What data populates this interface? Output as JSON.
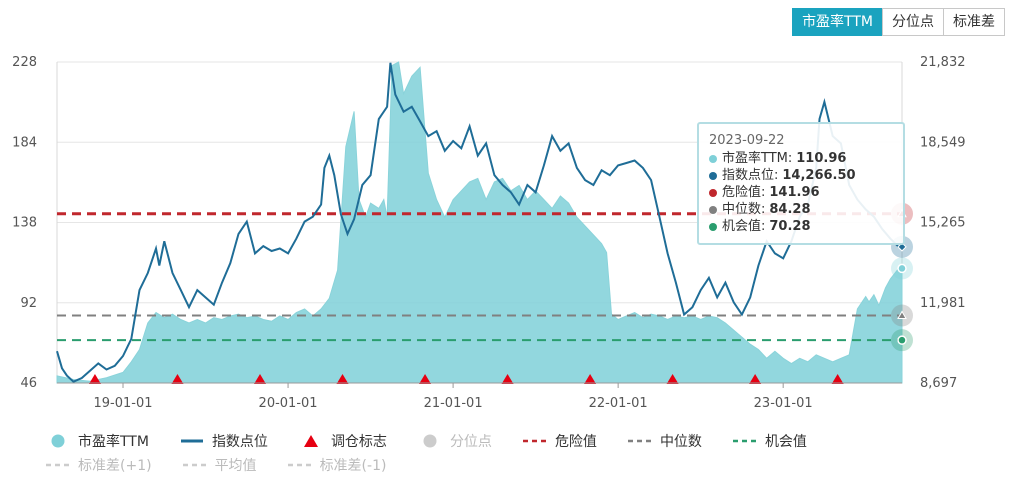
{
  "tabs": [
    {
      "label": "市盈率TTM",
      "active": true
    },
    {
      "label": "分位点",
      "active": false
    },
    {
      "label": "标准差",
      "active": false
    }
  ],
  "colors": {
    "pe": "#7fd0d8",
    "pe_line": "#8ad3da",
    "index": "#1f6d97",
    "danger": "#c0272d",
    "median": "#808080",
    "chance": "#2a9d6e",
    "marker": "#e60012",
    "disabled": "#cccccc"
  },
  "chart_data": {
    "type": "line",
    "x_ticks": [
      "19-01-01",
      "20-01-01",
      "21-01-01",
      "22-01-01",
      "23-01-01"
    ],
    "y_left": {
      "ticks": [
        "228",
        "184",
        "138",
        "92",
        "46"
      ],
      "range": [
        46,
        228
      ]
    },
    "y_right": {
      "ticks": [
        "21,832",
        "18,549",
        "15,265",
        "11,981",
        "8,697"
      ],
      "range": [
        8697,
        21832
      ]
    },
    "x_range_years": [
      2018.6,
      2023.72
    ],
    "reference_lines": {
      "danger": 141.96,
      "median": 84.28,
      "chance": 70.28
    },
    "rebalance_markers": [
      2018.83,
      2019.33,
      2019.83,
      2020.33,
      2020.83,
      2021.33,
      2021.83,
      2022.33,
      2022.83,
      2023.33
    ],
    "series": [
      {
        "name": "市盈率TTM",
        "type": "area",
        "points": [
          [
            2018.6,
            50
          ],
          [
            2018.7,
            48
          ],
          [
            2018.8,
            47
          ],
          [
            2018.9,
            49
          ],
          [
            2019.0,
            52
          ],
          [
            2019.05,
            58
          ],
          [
            2019.1,
            65
          ],
          [
            2019.15,
            80
          ],
          [
            2019.2,
            86
          ],
          [
            2019.25,
            83
          ],
          [
            2019.3,
            85
          ],
          [
            2019.35,
            82
          ],
          [
            2019.4,
            80
          ],
          [
            2019.45,
            82
          ],
          [
            2019.5,
            80
          ],
          [
            2019.55,
            83
          ],
          [
            2019.6,
            82
          ],
          [
            2019.65,
            84
          ],
          [
            2019.7,
            85
          ],
          [
            2019.75,
            83
          ],
          [
            2019.8,
            84
          ],
          [
            2019.85,
            82
          ],
          [
            2019.9,
            81
          ],
          [
            2019.95,
            84
          ],
          [
            2020.0,
            82
          ],
          [
            2020.05,
            86
          ],
          [
            2020.1,
            88
          ],
          [
            2020.15,
            84
          ],
          [
            2020.2,
            88
          ],
          [
            2020.25,
            94
          ],
          [
            2020.3,
            110
          ],
          [
            2020.35,
            180
          ],
          [
            2020.4,
            200
          ],
          [
            2020.43,
            150
          ],
          [
            2020.47,
            140
          ],
          [
            2020.5,
            148
          ],
          [
            2020.55,
            145
          ],
          [
            2020.58,
            150
          ],
          [
            2020.6,
            140
          ],
          [
            2020.63,
            226
          ],
          [
            2020.67,
            228
          ],
          [
            2020.7,
            210
          ],
          [
            2020.75,
            220
          ],
          [
            2020.8,
            225
          ],
          [
            2020.85,
            165
          ],
          [
            2020.9,
            150
          ],
          [
            2020.95,
            140
          ],
          [
            2021.0,
            150
          ],
          [
            2021.05,
            155
          ],
          [
            2021.1,
            160
          ],
          [
            2021.15,
            162
          ],
          [
            2021.2,
            150
          ],
          [
            2021.25,
            160
          ],
          [
            2021.3,
            162
          ],
          [
            2021.35,
            155
          ],
          [
            2021.4,
            158
          ],
          [
            2021.45,
            150
          ],
          [
            2021.5,
            155
          ],
          [
            2021.55,
            150
          ],
          [
            2021.6,
            145
          ],
          [
            2021.65,
            152
          ],
          [
            2021.7,
            148
          ],
          [
            2021.75,
            140
          ],
          [
            2021.8,
            135
          ],
          [
            2021.85,
            130
          ],
          [
            2021.9,
            125
          ],
          [
            2021.93,
            120
          ],
          [
            2021.96,
            85
          ],
          [
            2022.0,
            82
          ],
          [
            2022.05,
            84
          ],
          [
            2022.1,
            86
          ],
          [
            2022.15,
            83
          ],
          [
            2022.2,
            85
          ],
          [
            2022.25,
            84
          ],
          [
            2022.3,
            82
          ],
          [
            2022.35,
            84
          ],
          [
            2022.4,
            83
          ],
          [
            2022.45,
            84
          ],
          [
            2022.5,
            82
          ],
          [
            2022.55,
            84
          ],
          [
            2022.6,
            83
          ],
          [
            2022.65,
            80
          ],
          [
            2022.7,
            76
          ],
          [
            2022.75,
            72
          ],
          [
            2022.8,
            68
          ],
          [
            2022.85,
            65
          ],
          [
            2022.9,
            60
          ],
          [
            2022.95,
            64
          ],
          [
            2023.0,
            60
          ],
          [
            2023.05,
            57
          ],
          [
            2023.1,
            60
          ],
          [
            2023.15,
            58
          ],
          [
            2023.2,
            62
          ],
          [
            2023.25,
            60
          ],
          [
            2023.3,
            58
          ],
          [
            2023.35,
            60
          ],
          [
            2023.4,
            62
          ],
          [
            2023.45,
            88
          ],
          [
            2023.5,
            95
          ],
          [
            2023.52,
            92
          ],
          [
            2023.55,
            96
          ],
          [
            2023.58,
            90
          ],
          [
            2023.62,
            100
          ],
          [
            2023.65,
            105
          ],
          [
            2023.7,
            110.96
          ],
          [
            2023.72,
            110.96
          ]
        ]
      },
      {
        "name": "指数点位",
        "axis": "right",
        "points": [
          [
            2018.6,
            10000
          ],
          [
            2018.63,
            9300
          ],
          [
            2018.66,
            9000
          ],
          [
            2018.7,
            8750
          ],
          [
            2018.75,
            8900
          ],
          [
            2018.8,
            9200
          ],
          [
            2018.85,
            9500
          ],
          [
            2018.9,
            9250
          ],
          [
            2018.95,
            9400
          ],
          [
            2019.0,
            9800
          ],
          [
            2019.05,
            10500
          ],
          [
            2019.1,
            12500
          ],
          [
            2019.15,
            13200
          ],
          [
            2019.2,
            14200
          ],
          [
            2019.22,
            13500
          ],
          [
            2019.25,
            14500
          ],
          [
            2019.3,
            13200
          ],
          [
            2019.35,
            12500
          ],
          [
            2019.4,
            11800
          ],
          [
            2019.45,
            12500
          ],
          [
            2019.5,
            12200
          ],
          [
            2019.55,
            11900
          ],
          [
            2019.6,
            12800
          ],
          [
            2019.65,
            13600
          ],
          [
            2019.7,
            14800
          ],
          [
            2019.75,
            15300
          ],
          [
            2019.8,
            14000
          ],
          [
            2019.85,
            14300
          ],
          [
            2019.9,
            14100
          ],
          [
            2019.95,
            14200
          ],
          [
            2020.0,
            14000
          ],
          [
            2020.05,
            14600
          ],
          [
            2020.1,
            15300
          ],
          [
            2020.15,
            15500
          ],
          [
            2020.2,
            16000
          ],
          [
            2020.22,
            17500
          ],
          [
            2020.25,
            18000
          ],
          [
            2020.28,
            17200
          ],
          [
            2020.32,
            15600
          ],
          [
            2020.36,
            14800
          ],
          [
            2020.4,
            15400
          ],
          [
            2020.45,
            16800
          ],
          [
            2020.5,
            17200
          ],
          [
            2020.55,
            19500
          ],
          [
            2020.6,
            20000
          ],
          [
            2020.62,
            21800
          ],
          [
            2020.65,
            20500
          ],
          [
            2020.7,
            19800
          ],
          [
            2020.75,
            20000
          ],
          [
            2020.8,
            19400
          ],
          [
            2020.85,
            18800
          ],
          [
            2020.9,
            19000
          ],
          [
            2020.95,
            18200
          ],
          [
            2021.0,
            18600
          ],
          [
            2021.05,
            18300
          ],
          [
            2021.1,
            19200
          ],
          [
            2021.15,
            18000
          ],
          [
            2021.2,
            18500
          ],
          [
            2021.25,
            17200
          ],
          [
            2021.3,
            16800
          ],
          [
            2021.35,
            16500
          ],
          [
            2021.4,
            16000
          ],
          [
            2021.45,
            16800
          ],
          [
            2021.5,
            16500
          ],
          [
            2021.55,
            17600
          ],
          [
            2021.6,
            18800
          ],
          [
            2021.65,
            18200
          ],
          [
            2021.7,
            18500
          ],
          [
            2021.75,
            17500
          ],
          [
            2021.8,
            17000
          ],
          [
            2021.85,
            16800
          ],
          [
            2021.9,
            17400
          ],
          [
            2021.95,
            17200
          ],
          [
            2022.0,
            17600
          ],
          [
            2022.05,
            17700
          ],
          [
            2022.1,
            17800
          ],
          [
            2022.15,
            17500
          ],
          [
            2022.2,
            17000
          ],
          [
            2022.25,
            15500
          ],
          [
            2022.3,
            14000
          ],
          [
            2022.35,
            12800
          ],
          [
            2022.4,
            11500
          ],
          [
            2022.45,
            11800
          ],
          [
            2022.5,
            12500
          ],
          [
            2022.55,
            13000
          ],
          [
            2022.6,
            12200
          ],
          [
            2022.65,
            12800
          ],
          [
            2022.7,
            12000
          ],
          [
            2022.75,
            11500
          ],
          [
            2022.8,
            12200
          ],
          [
            2022.85,
            13500
          ],
          [
            2022.9,
            14500
          ],
          [
            2022.95,
            14000
          ],
          [
            2023.0,
            13800
          ],
          [
            2023.05,
            14500
          ],
          [
            2023.1,
            15500
          ],
          [
            2023.15,
            16000
          ],
          [
            2023.2,
            17500
          ],
          [
            2023.22,
            19500
          ],
          [
            2023.25,
            20200
          ],
          [
            2023.3,
            18800
          ],
          [
            2023.35,
            18500
          ],
          [
            2023.4,
            16800
          ],
          [
            2023.45,
            16200
          ],
          [
            2023.5,
            15800
          ],
          [
            2023.55,
            15500
          ],
          [
            2023.6,
            15000
          ],
          [
            2023.65,
            14600
          ],
          [
            2023.7,
            14266.5
          ],
          [
            2023.72,
            14266.5
          ]
        ]
      }
    ]
  },
  "tooltip": {
    "date": "2023-09-22",
    "rows": [
      {
        "label": "市盈率TTM:",
        "value": "110.96",
        "color": "#7fd0d8"
      },
      {
        "label": "指数点位:",
        "value": "14,266.50",
        "color": "#1f6d97"
      },
      {
        "label": "危险值:",
        "value": "141.96",
        "color": "#c0272d"
      },
      {
        "label": "中位数:",
        "value": "84.28",
        "color": "#808080"
      },
      {
        "label": "机会值:",
        "value": "70.28",
        "color": "#2a9d6e"
      }
    ]
  },
  "legend": {
    "row1": [
      {
        "label": "市盈率TTM",
        "symbol": "circle",
        "color": "#7fd0d8",
        "on": true
      },
      {
        "label": "指数点位",
        "symbol": "line",
        "color": "#1f6d97",
        "on": true
      },
      {
        "label": "调仓标志",
        "symbol": "triangle",
        "color": "#e60012",
        "on": true
      },
      {
        "label": "分位点",
        "symbol": "circle",
        "color": "#cccccc",
        "on": false
      },
      {
        "label": "危险值",
        "symbol": "dash",
        "color": "#c0272d",
        "on": true
      },
      {
        "label": "中位数",
        "symbol": "dash",
        "color": "#808080",
        "on": true
      },
      {
        "label": "机会值",
        "symbol": "dash",
        "color": "#2a9d6e",
        "on": true
      }
    ],
    "row2": [
      {
        "label": "标准差(+1)",
        "symbol": "dash",
        "color": "#cccccc",
        "on": false
      },
      {
        "label": "平均值",
        "symbol": "dash",
        "color": "#cccccc",
        "on": false
      },
      {
        "label": "标准差(-1)",
        "symbol": "dash",
        "color": "#cccccc",
        "on": false
      }
    ]
  }
}
